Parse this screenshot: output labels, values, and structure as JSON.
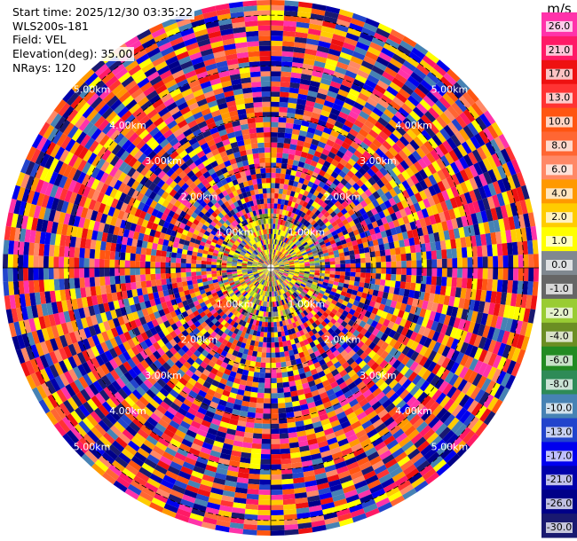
{
  "header": {
    "start_time": "Start time: 2025/12/30 03:35:22",
    "instrument": "WLS200s-181",
    "field": "Field: VEL",
    "elevation": "Elevation(deg): 35.00",
    "nrays": "NRays: 120"
  },
  "chart_data": {
    "type": "heatmap",
    "projection": "polar-ppi",
    "rays": 120,
    "range_rings": [
      "1.00km",
      "2.00km",
      "3.00km",
      "4.00km",
      "5.00km"
    ],
    "range_ring_values_km": [
      1,
      2,
      3,
      4,
      5
    ],
    "max_range_km": 5.3,
    "colorbar": {
      "unit": "m/s",
      "ticks": [
        "26.0",
        "21.0",
        "17.0",
        "13.0",
        "10.0",
        "8.0",
        "6.0",
        "4.0",
        "2.0",
        "1.0",
        "0.0",
        "-1.0",
        "-2.0",
        "-4.0",
        "-6.0",
        "-8.0",
        "-10.0",
        "-13.0",
        "-17.0",
        "-21.0",
        "-26.0",
        "-30.0"
      ],
      "colors": [
        "#ff33aa",
        "#ff1a66",
        "#ee1111",
        "#ff3333",
        "#ff5511",
        "#ff6633",
        "#ff8866",
        "#ff9900",
        "#ffcc00",
        "#ffff00",
        "#808890",
        "#666666",
        "#99cc33",
        "#6b8e23",
        "#228b22",
        "#2e8b57",
        "#4682b4",
        "#2244cc",
        "#0000ee",
        "#0000aa",
        "#000088",
        "#191970"
      ]
    }
  }
}
